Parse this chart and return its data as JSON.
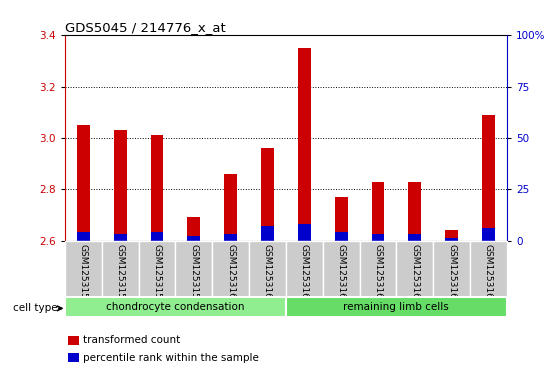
{
  "title": "GDS5045 / 214776_x_at",
  "samples": [
    "GSM1253156",
    "GSM1253157",
    "GSM1253158",
    "GSM1253159",
    "GSM1253160",
    "GSM1253161",
    "GSM1253162",
    "GSM1253163",
    "GSM1253164",
    "GSM1253165",
    "GSM1253166",
    "GSM1253167"
  ],
  "transformed_count": [
    3.05,
    3.03,
    3.01,
    2.69,
    2.86,
    2.96,
    3.35,
    2.77,
    2.83,
    2.83,
    2.64,
    3.09
  ],
  "percentile_rank": [
    4,
    3,
    4,
    2,
    3,
    7,
    8,
    4,
    3,
    3,
    1,
    6
  ],
  "ylim_left": [
    2.6,
    3.4
  ],
  "ylim_right": [
    0,
    100
  ],
  "yticks_left": [
    2.6,
    2.8,
    3.0,
    3.2,
    3.4
  ],
  "yticks_right": [
    0,
    25,
    50,
    75,
    100
  ],
  "ytick_labels_right": [
    "0",
    "25",
    "50",
    "75",
    "100%"
  ],
  "groups": [
    {
      "label": "chondrocyte condensation",
      "indices": [
        0,
        1,
        2,
        3,
        4,
        5
      ],
      "color": "#90ee90"
    },
    {
      "label": "remaining limb cells",
      "indices": [
        6,
        7,
        8,
        9,
        10,
        11
      ],
      "color": "#66dd66"
    }
  ],
  "bar_width": 0.35,
  "red_color": "#cc0000",
  "blue_color": "#0000cc",
  "bg_color": "#cccccc",
  "cell_type_label": "cell type",
  "legend_items": [
    {
      "color": "#cc0000",
      "label": "transformed count"
    },
    {
      "color": "#0000cc",
      "label": "percentile rank within the sample"
    }
  ]
}
